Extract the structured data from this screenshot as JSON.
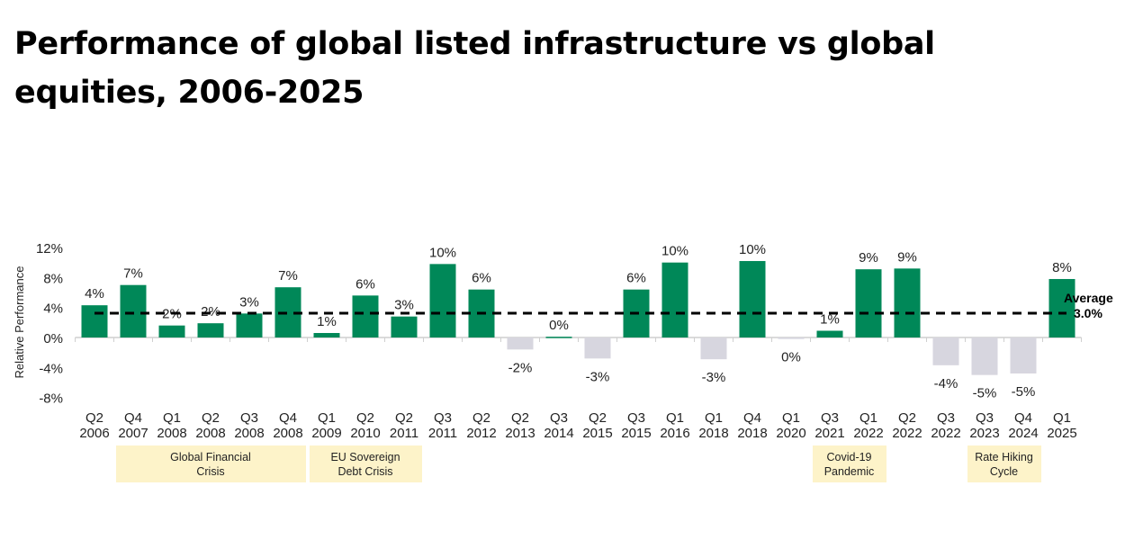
{
  "title": "Performance of global listed infrastructure vs global equities, 2006-2025",
  "chart_data": {
    "type": "bar",
    "title": "Performance of global listed infrastructure vs global equities, 2006-2025",
    "ylabel": "Relative Performance",
    "xlabel": "",
    "ylim": [
      -8,
      12
    ],
    "yticks": [
      "12%",
      "8%",
      "4%",
      "0%",
      "-4%",
      "-8%"
    ],
    "ytick_values": [
      12,
      8,
      4,
      0,
      -4,
      -8
    ],
    "grid": false,
    "categories": [
      [
        "Q2",
        "2006"
      ],
      [
        "Q4",
        "2007"
      ],
      [
        "Q1",
        "2008"
      ],
      [
        "Q2",
        "2008"
      ],
      [
        "Q3",
        "2008"
      ],
      [
        "Q4",
        "2008"
      ],
      [
        "Q1",
        "2009"
      ],
      [
        "Q2",
        "2010"
      ],
      [
        "Q2",
        "2011"
      ],
      [
        "Q3",
        "2011"
      ],
      [
        "Q2",
        "2012"
      ],
      [
        "Q2",
        "2013"
      ],
      [
        "Q3",
        "2014"
      ],
      [
        "Q2",
        "2015"
      ],
      [
        "Q3",
        "2015"
      ],
      [
        "Q1",
        "2016"
      ],
      [
        "Q1",
        "2018"
      ],
      [
        "Q4",
        "2018"
      ],
      [
        "Q1",
        "2020"
      ],
      [
        "Q3",
        "2021"
      ],
      [
        "Q1",
        "2022"
      ],
      [
        "Q2",
        "2022"
      ],
      [
        "Q3",
        "2022"
      ],
      [
        "Q3",
        "2023"
      ],
      [
        "Q4",
        "2024"
      ],
      [
        "Q1",
        "2025"
      ]
    ],
    "values": [
      4.3,
      7.0,
      1.6,
      1.9,
      3.2,
      6.7,
      0.6,
      5.6,
      2.8,
      9.8,
      6.4,
      -1.6,
      0.1,
      -2.8,
      6.4,
      10.0,
      -2.9,
      10.2,
      -0.2,
      0.9,
      9.1,
      9.2,
      -3.7,
      -5.0,
      -4.8,
      7.8
    ],
    "data_labels": [
      "4%",
      "7%",
      "2%",
      "2%",
      "3%",
      "7%",
      "1%",
      "6%",
      "3%",
      "10%",
      "6%",
      "-2%",
      "0%",
      "-3%",
      "6%",
      "10%",
      "-3%",
      "10%",
      "0%",
      "1%",
      "9%",
      "9%",
      "-4%",
      "-5%",
      "-5%",
      "8%"
    ],
    "average": {
      "value": 3.0,
      "label_line1": "Average",
      "label_line2": "3.0%"
    },
    "colors": {
      "positive": "#008858",
      "negative": "#d7d6df",
      "average_line": "#000000",
      "annotation_band": "#fdf3c9"
    },
    "annotations": [
      {
        "label": "Global Financial Crisis",
        "line1": "Global Financial",
        "line2": "Crisis",
        "from": "Q4 2007",
        "to": "Q4 2008"
      },
      {
        "label": "EU Sovereign Debt Crisis",
        "line1": "EU Sovereign",
        "line2": "Debt Crisis",
        "from": "Q1 2009",
        "to": "Q2 2011"
      },
      {
        "label": "Covid-19 Pandemic",
        "line1": "Covid-19",
        "line2": "Pandemic",
        "from": "Q3 2021",
        "to": "Q1 2022"
      },
      {
        "label": "Rate Hiking Cycle",
        "line1": "Rate Hiking",
        "line2": "Cycle",
        "from": "Q3 2023",
        "to": "Q4 2024"
      }
    ]
  }
}
